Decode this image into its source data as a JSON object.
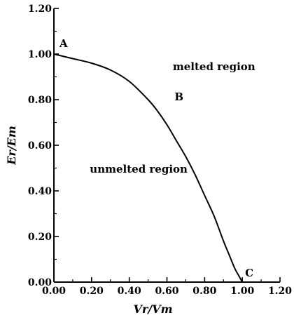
{
  "chart_data": {
    "type": "line",
    "xlabel": "Vr/Vm",
    "ylabel": "Er/Em",
    "xlim": [
      0,
      1.2
    ],
    "ylim": [
      0,
      1.2
    ],
    "x_ticks": [
      "0.00",
      "0.20",
      "0.40",
      "0.60",
      "0.80",
      "1.00",
      "1.20"
    ],
    "y_ticks": [
      "0.00",
      "0.20",
      "0.40",
      "0.60",
      "0.80",
      "1.00",
      "1.20"
    ],
    "grid": false,
    "series": [
      {
        "x": [
          0.0,
          0.1,
          0.2,
          0.3,
          0.4,
          0.5,
          0.55,
          0.6,
          0.65,
          0.7,
          0.75,
          0.8,
          0.85,
          0.9,
          0.93,
          0.96,
          0.98,
          1.0
        ],
        "y": [
          1.0,
          0.98,
          0.96,
          0.93,
          0.88,
          0.8,
          0.75,
          0.69,
          0.62,
          0.55,
          0.47,
          0.38,
          0.29,
          0.18,
          0.12,
          0.06,
          0.03,
          0.0
        ]
      }
    ],
    "point_labels": [
      {
        "text": "A",
        "x": 0.0,
        "y": 1.0
      },
      {
        "text": "B",
        "x": 0.67,
        "y": 0.76
      },
      {
        "text": "C",
        "x": 1.0,
        "y": 0.0
      }
    ],
    "annotations": [
      {
        "text": "melted region",
        "x": 0.85,
        "y": 0.93
      },
      {
        "text": "unmelted region",
        "x": 0.45,
        "y": 0.48
      }
    ]
  }
}
